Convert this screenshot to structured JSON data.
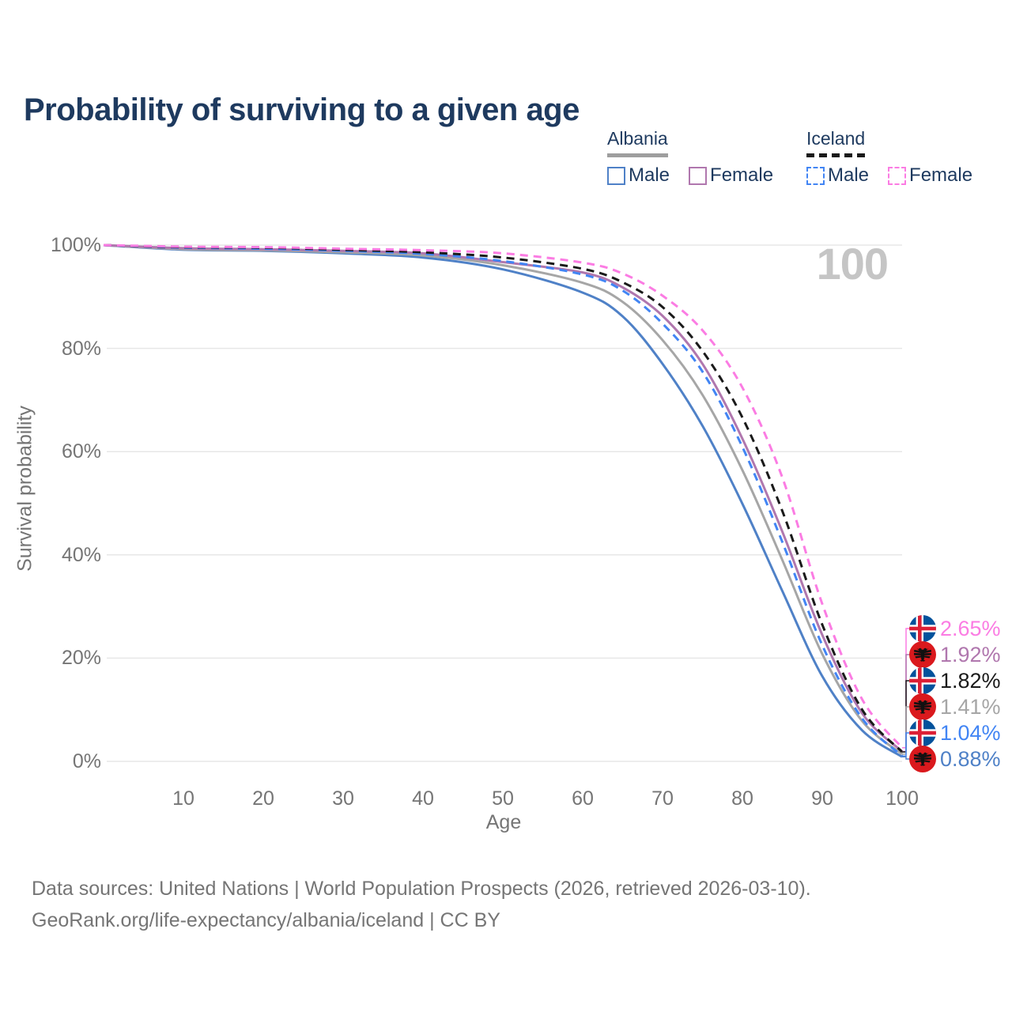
{
  "title": "Probability of surviving to a given age",
  "legend": {
    "groups": [
      {
        "country": "Albania",
        "line_style": "solid",
        "underline_color": "#9e9e9e",
        "items": [
          {
            "label": "Male",
            "color": "#4f81c7"
          },
          {
            "label": "Female",
            "color": "#b077ae"
          }
        ]
      },
      {
        "country": "Iceland",
        "line_style": "dashed",
        "underline_color": "#1a1a1a",
        "items": [
          {
            "label": "Male",
            "color": "#4285f4"
          },
          {
            "label": "Female",
            "color": "#fb7ce3"
          }
        ]
      }
    ]
  },
  "chart_data": {
    "type": "line",
    "title": "Probability of surviving to a given age",
    "xlabel": "Age",
    "ylabel": "Survival probability",
    "xlim": [
      0,
      100
    ],
    "ylim": [
      0,
      100
    ],
    "grid": "horizontal-only",
    "watermark": "100",
    "x_ticks": [
      10,
      20,
      30,
      40,
      50,
      60,
      70,
      80,
      90,
      100
    ],
    "y_ticks": [
      {
        "value": 100,
        "label": "100%"
      },
      {
        "value": 80,
        "label": "80%"
      },
      {
        "value": 60,
        "label": "60%"
      },
      {
        "value": 40,
        "label": "40%"
      },
      {
        "value": 20,
        "label": "20%"
      },
      {
        "value": 0,
        "label": "0%"
      }
    ],
    "x": [
      0,
      10,
      20,
      30,
      40,
      50,
      60,
      65,
      70,
      75,
      80,
      85,
      90,
      95,
      100
    ],
    "series": [
      {
        "name": "albania-male",
        "country": "Albania",
        "sex": "Male",
        "color": "#4f81c7",
        "dash": false,
        "values": [
          100,
          99.1,
          98.9,
          98.4,
          97.6,
          95.3,
          90.8,
          86.2,
          77.0,
          65.0,
          49.9,
          33.0,
          16.5,
          6.0,
          0.88
        ]
      },
      {
        "name": "albania-combined",
        "country": "Albania",
        "sex": "Both",
        "color": "#a6a6a6",
        "dash": false,
        "values": [
          100,
          99.2,
          99.0,
          98.6,
          98.0,
          96.1,
          92.7,
          89.0,
          81.6,
          71.0,
          56.4,
          39.0,
          20.8,
          7.8,
          1.41
        ]
      },
      {
        "name": "albania-female",
        "country": "Albania",
        "sex": "Female",
        "color": "#b077ae",
        "dash": false,
        "values": [
          100,
          99.4,
          99.2,
          98.9,
          98.4,
          96.7,
          94.7,
          91.8,
          86.3,
          77.0,
          62.5,
          44.5,
          24.5,
          9.3,
          1.92
        ]
      },
      {
        "name": "iceland-male",
        "country": "Iceland",
        "sex": "Male",
        "color": "#4285f4",
        "dash": true,
        "values": [
          100,
          99.5,
          99.3,
          98.9,
          98.3,
          96.9,
          94.3,
          91.2,
          84.8,
          75.5,
          60.9,
          42.5,
          22.5,
          8.3,
          1.04
        ]
      },
      {
        "name": "iceland-combined",
        "country": "Iceland",
        "sex": "Both",
        "color": "#1a1a1a",
        "dash": true,
        "values": [
          100,
          99.6,
          99.5,
          99.1,
          98.6,
          97.6,
          95.4,
          92.8,
          88.0,
          79.5,
          66.6,
          48.5,
          26.5,
          10.0,
          1.82
        ]
      },
      {
        "name": "iceland-female",
        "country": "Iceland",
        "sex": "Female",
        "color": "#fb7ce3",
        "dash": true,
        "values": [
          100,
          99.7,
          99.6,
          99.3,
          99.0,
          98.4,
          96.6,
          94.5,
          90.2,
          83.5,
          72.4,
          55.0,
          30.5,
          12.0,
          2.65
        ]
      }
    ]
  },
  "end_labels": [
    {
      "flag": "iceland",
      "value": "2.65%",
      "color": "#fb7ce3"
    },
    {
      "flag": "albania",
      "value": "1.92%",
      "color": "#b077ae"
    },
    {
      "flag": "iceland",
      "value": "1.82%",
      "color": "#1a1a1a"
    },
    {
      "flag": "albania",
      "value": "1.41%",
      "color": "#a6a6a6"
    },
    {
      "flag": "iceland",
      "value": "1.04%",
      "color": "#4285f4"
    },
    {
      "flag": "albania",
      "value": "0.88%",
      "color": "#4f81c7"
    }
  ],
  "footer": {
    "line1": "Data sources: United Nations | World Population Prospects (2026, retrieved 2026-03-10).",
    "line2": "GeoRank.org/life-expectancy/albania/iceland | CC BY"
  }
}
